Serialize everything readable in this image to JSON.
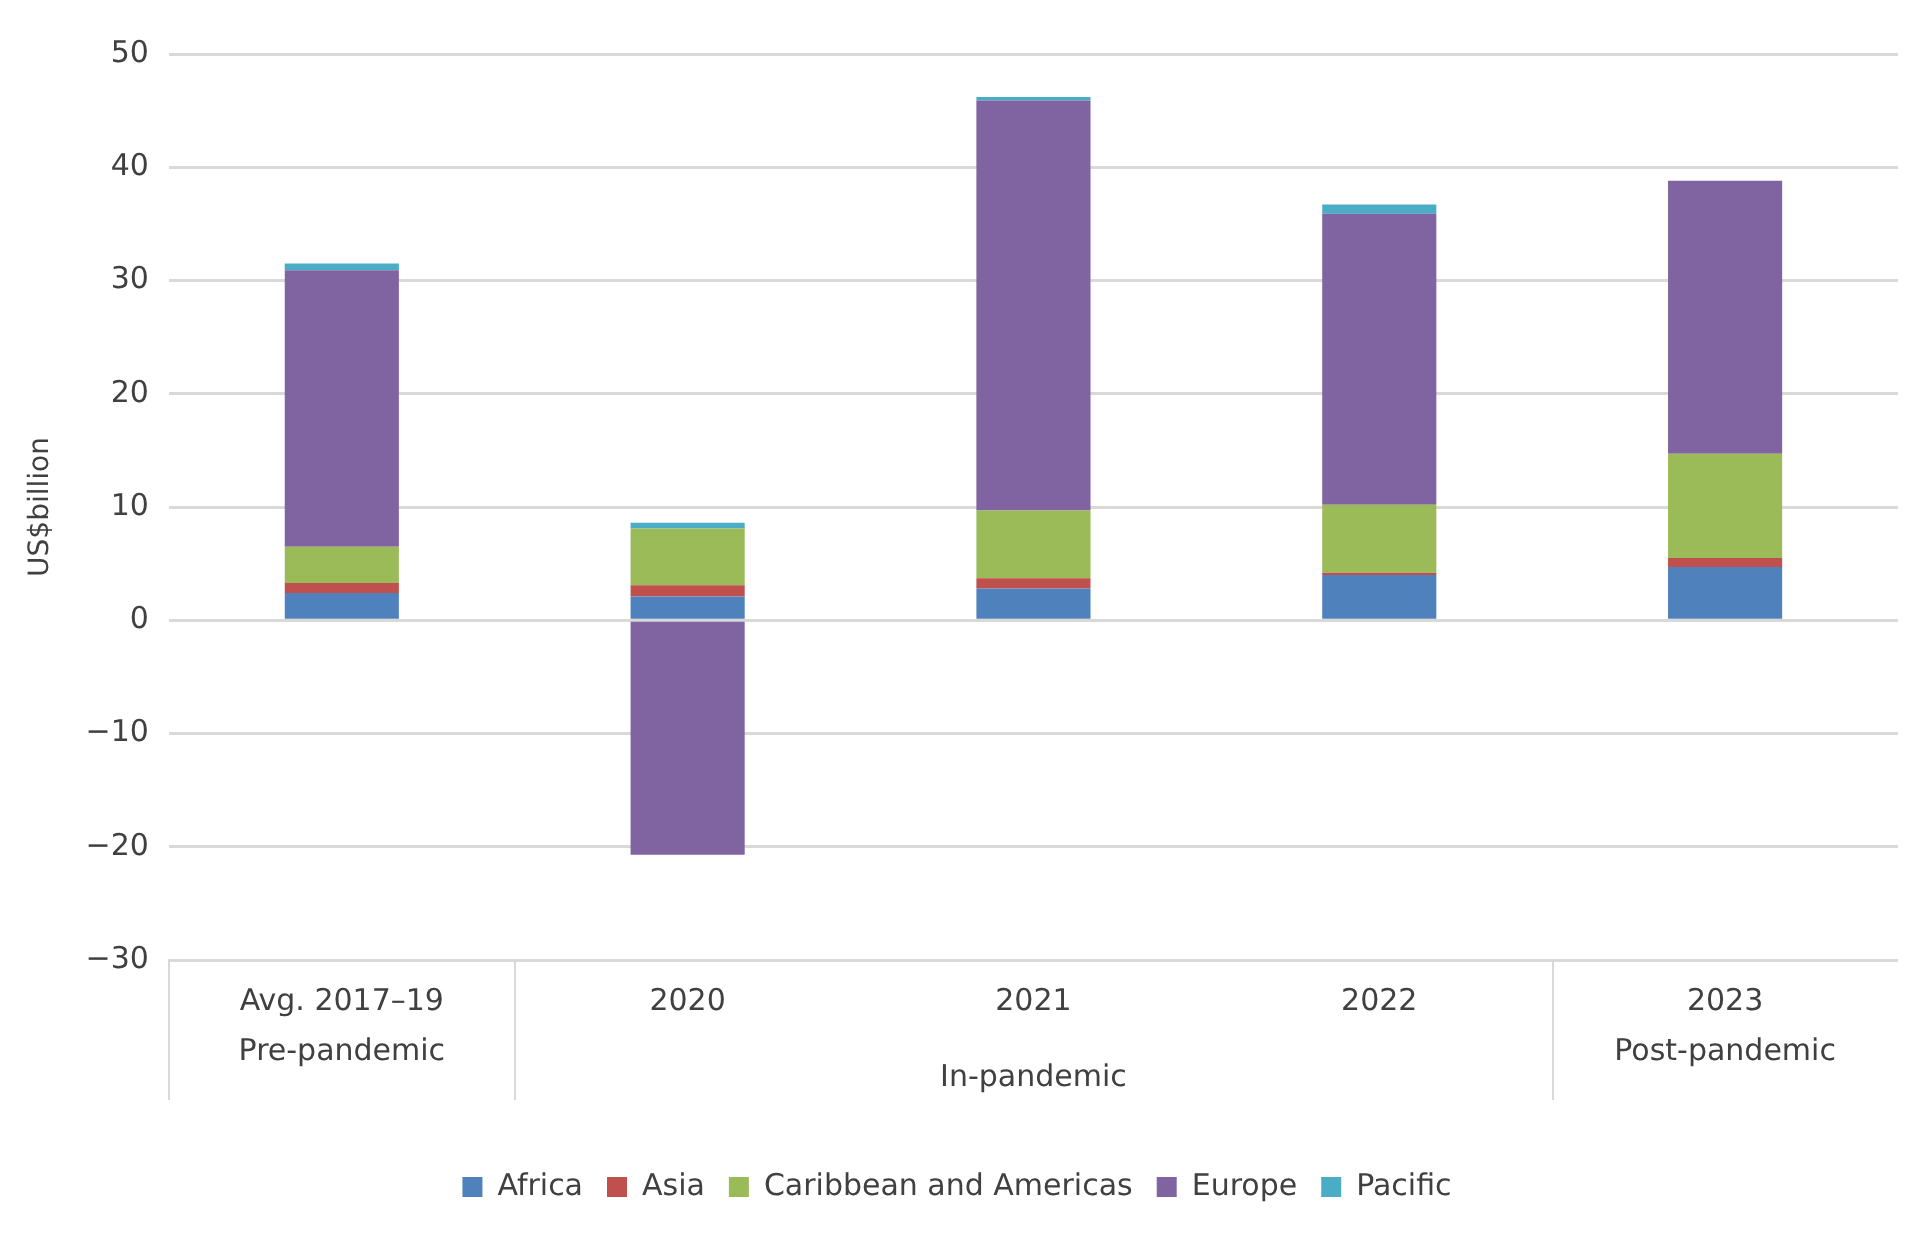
{
  "chart_data": {
    "type": "bar",
    "stacked": true,
    "ylabel": "US$billion",
    "categories": [
      "Avg. 2017–19",
      "2020",
      "2021",
      "2022",
      "2023"
    ],
    "series": [
      {
        "name": "Africa",
        "color": "#4f81bd",
        "values": [
          2.4,
          2.1,
          2.8,
          4.0,
          4.7
        ]
      },
      {
        "name": "Asia",
        "color": "#c0504d",
        "values": [
          0.9,
          1.0,
          0.9,
          0.2,
          0.8
        ]
      },
      {
        "name": "Caribbean and Americas",
        "color": "#9bbb59",
        "values": [
          3.2,
          5.0,
          6.0,
          6.0,
          9.2
        ]
      },
      {
        "name": "Europe",
        "color": "#8064a2",
        "values": [
          24.4,
          -20.7,
          36.2,
          25.7,
          24.1
        ]
      },
      {
        "name": "Pacific",
        "color": "#4bacc6",
        "values": [
          0.6,
          0.5,
          0.3,
          0.8,
          0
        ]
      }
    ],
    "ylim": [
      -30,
      50
    ],
    "yticks": [
      {
        "value": -30,
        "label": "−30"
      },
      {
        "value": -20,
        "label": "−20"
      },
      {
        "value": -10,
        "label": "−10"
      },
      0,
      10,
      20,
      30,
      40,
      50
    ],
    "grid": "y",
    "legend": "bottom",
    "annotations": [
      "Pre-pandemic",
      "In-pandemic",
      "Post-pandemic"
    ]
  }
}
